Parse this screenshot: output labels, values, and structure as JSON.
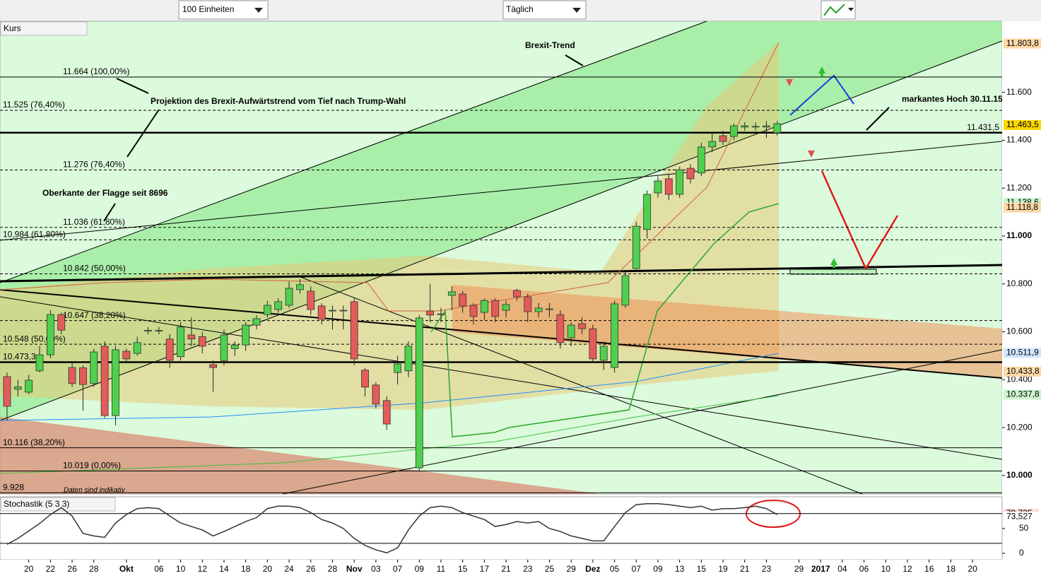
{
  "toolbar": {
    "units": "100 Einheiten",
    "interval": "Täglich"
  },
  "chart_data": {
    "type": "candlestick",
    "title": "Kurs",
    "annotations": [
      "Brexit-Trend",
      "Projektion des  Brexit-Aufwärtstrend vom Tief nach Trump-Wahl",
      "markantes Hoch 30.11.15",
      "Oberkante der Flagge seit 8696",
      "Daten sind indikativ"
    ],
    "up_color": "#4fd04f",
    "down_color": "#e35b5b",
    "open": [
      10413,
      10360,
      10348,
      10437,
      10504,
      10672,
      10451,
      10450,
      10384,
      10540,
      10250,
      10519,
      10510,
      10603,
      10603,
      10570,
      10496,
      10587,
      10580,
      10463,
      10480,
      10530,
      10545,
      10628,
      10672,
      10693,
      10711,
      10776,
      10770,
      10708,
      10688,
      10688,
      10726,
      10440,
      10378,
      10313,
      10430,
      10437,
      10032,
      10687,
      10672,
      10752,
      10758,
      10711,
      10681,
      10731,
      10690,
      10773,
      10746,
      10684,
      10693,
      10672,
      10575,
      10634,
      10613,
      10481,
      10451,
      10711,
      10864,
      11027,
      11180,
      11239,
      11174,
      11283,
      11263,
      11372,
      11419,
      11416,
      11455,
      11455,
      11455,
      11431
    ],
    "high": [
      10430,
      10400,
      10420,
      10540,
      10690,
      10680,
      10470,
      10460,
      10530,
      10560,
      10540,
      10530,
      10580,
      10620,
      10620,
      10590,
      10640,
      10660,
      10600,
      10480,
      10610,
      10560,
      10640,
      10670,
      10730,
      10740,
      10810,
      10820,
      10790,
      10720,
      10710,
      10710,
      10740,
      10450,
      10390,
      10330,
      10500,
      10560,
      10670,
      10800,
      10700,
      10790,
      10770,
      10720,
      10740,
      10740,
      10730,
      10780,
      10760,
      10720,
      10720,
      10690,
      10640,
      10660,
      10630,
      10560,
      10730,
      10850,
      11060,
      11190,
      11250,
      11260,
      11290,
      11300,
      11390,
      11430,
      11440,
      11470,
      11475,
      11475,
      11480,
      11480
    ],
    "low": [
      10230,
      10330,
      10340,
      10430,
      10490,
      10590,
      10370,
      10270,
      10370,
      10240,
      10210,
      10470,
      10500,
      10590,
      10590,
      10450,
      10480,
      10540,
      10510,
      10350,
      10460,
      10500,
      10520,
      10610,
      10660,
      10680,
      10700,
      10760,
      10670,
      10630,
      10610,
      10610,
      10460,
      10330,
      10280,
      10190,
      10380,
      10410,
      10020,
      10640,
      10640,
      10690,
      10680,
      10630,
      10650,
      10640,
      10660,
      10730,
      10640,
      10660,
      10660,
      10530,
      10540,
      10590,
      10470,
      10440,
      10430,
      10700,
      10850,
      10990,
      11160,
      11150,
      11160,
      11220,
      11250,
      11350,
      11380,
      11400,
      11440,
      11440,
      11410,
      11420
    ],
    "close": [
      10289,
      10370,
      10398,
      10504,
      10672,
      10607,
      10384,
      10380,
      10516,
      10250,
      10525,
      10487,
      10555,
      10606,
      10606,
      10481,
      10620,
      10570,
      10540,
      10451,
      10587,
      10545,
      10628,
      10655,
      10711,
      10726,
      10782,
      10797,
      10693,
      10652,
      10690,
      10690,
      10487,
      10369,
      10298,
      10215,
      10466,
      10540,
      10658,
      10670,
      10675,
      10767,
      10708,
      10664,
      10731,
      10664,
      10714,
      10746,
      10684,
      10699,
      10696,
      10555,
      10628,
      10613,
      10487,
      10540,
      10717,
      10835,
      11041,
      11174,
      11230,
      11174,
      11277,
      11239,
      11372,
      11395,
      11395,
      11460,
      11460,
      11458,
      11460,
      11469
    ],
    "xlim": [
      -0.65,
      91.73
    ],
    "xticks": [
      {
        "value": 2,
        "label": "20"
      },
      {
        "value": 4,
        "label": "22"
      },
      {
        "value": 6,
        "label": "26"
      },
      {
        "value": 8,
        "label": "28"
      },
      {
        "value": 11,
        "label": "Okt"
      },
      {
        "value": 14,
        "label": "06"
      },
      {
        "value": 16,
        "label": "10"
      },
      {
        "value": 18,
        "label": "12"
      },
      {
        "value": 20,
        "label": "14"
      },
      {
        "value": 22,
        "label": "18"
      },
      {
        "value": 24,
        "label": "20"
      },
      {
        "value": 26,
        "label": "24"
      },
      {
        "value": 28,
        "label": "26"
      },
      {
        "value": 30,
        "label": "28"
      },
      {
        "value": 32,
        "label": "Nov"
      },
      {
        "value": 34,
        "label": "03"
      },
      {
        "value": 36,
        "label": "07"
      },
      {
        "value": 38,
        "label": "09"
      },
      {
        "value": 40,
        "label": "11"
      },
      {
        "value": 42,
        "label": "15"
      },
      {
        "value": 44,
        "label": "17"
      },
      {
        "value": 46,
        "label": "21"
      },
      {
        "value": 48,
        "label": "23"
      },
      {
        "value": 50,
        "label": "25"
      },
      {
        "value": 52,
        "label": "29"
      },
      {
        "value": 54,
        "label": "Dez"
      },
      {
        "value": 56,
        "label": "05"
      },
      {
        "value": 58,
        "label": "07"
      },
      {
        "value": 60,
        "label": "09"
      },
      {
        "value": 62,
        "label": "13"
      },
      {
        "value": 64,
        "label": "15"
      },
      {
        "value": 66,
        "label": "19"
      },
      {
        "value": 68,
        "label": "21"
      },
      {
        "value": 70,
        "label": "23"
      },
      {
        "value": 73,
        "label": "29"
      },
      {
        "value": 75,
        "label": "2017"
      },
      {
        "value": 77,
        "label": "04"
      },
      {
        "value": 79,
        "label": "06"
      },
      {
        "value": 81,
        "label": "10"
      },
      {
        "value": 83,
        "label": "12"
      },
      {
        "value": 85,
        "label": "16"
      },
      {
        "value": 87,
        "label": "18"
      },
      {
        "value": 89,
        "label": "20"
      }
    ],
    "ylim": [
      9923,
      11897
    ],
    "yticks": [
      {
        "value": 10000,
        "label": "10.000"
      },
      {
        "value": 10200,
        "label": "10.200"
      },
      {
        "value": 10400,
        "label": "10.400"
      },
      {
        "value": 10600,
        "label": "10.600"
      },
      {
        "value": 10800,
        "label": "10.800"
      },
      {
        "value": 11000,
        "label": "11.000"
      },
      {
        "value": 11200,
        "label": "11.200"
      },
      {
        "value": 11400,
        "label": "11.400"
      },
      {
        "value": 11600,
        "label": "11.600"
      }
    ],
    "levels": [
      {
        "value": 11664,
        "label": "11.664 (100,00%)",
        "style": "solid"
      },
      {
        "value": 11525,
        "label": "11.525 (76,40%)",
        "style": "dashed"
      },
      {
        "value": 11431.5,
        "label": "11.431,5",
        "style": "thick"
      },
      {
        "value": 11276,
        "label": "11.276 (76,40%)",
        "style": "dashed"
      },
      {
        "value": 11036,
        "label": "11.036 (61,80%)",
        "style": "dashed"
      },
      {
        "value": 10984,
        "label": "10,984 (61,80%)",
        "style": "dashed"
      },
      {
        "value": 10842,
        "label": "10.842 (50,00%)",
        "style": "dashed"
      },
      {
        "value": 10647,
        "label": "10.647 (38,20%)",
        "style": "dashed"
      },
      {
        "value": 10548,
        "label": "10.548 (50,00%)",
        "style": "dashed"
      },
      {
        "value": 10473.3,
        "label": "10.473,3",
        "style": "thick"
      },
      {
        "value": 10116,
        "label": "10.116 (38,20%)",
        "style": "solid"
      },
      {
        "value": 10019,
        "label": "10.019 (0,00%)",
        "style": "solid"
      },
      {
        "value": 9928,
        "label": "9.928",
        "style": "solid"
      }
    ],
    "price_markers": [
      {
        "value": 11803.8,
        "label": "11.803,8",
        "color": "#ffd8a8"
      },
      {
        "value": 11463.5,
        "label": "11.463,5",
        "color": "#ffd700"
      },
      {
        "value": 11138.6,
        "label": "11.138,6",
        "color": "#ccf5cc"
      },
      {
        "value": 11118.8,
        "label": "11.118,8",
        "color": "#ffd8a8"
      },
      {
        "value": 10511.9,
        "label": "10.511,9",
        "color": "#cfe6ff"
      },
      {
        "value": 10433.8,
        "label": "10.433,8",
        "color": "#ffd8a8"
      },
      {
        "value": 10337.8,
        "label": "10.337,8",
        "color": "#ccf5cc"
      }
    ],
    "stochastic": {
      "title": "Stochastik (5 3 3)",
      "color": "#333333",
      "values": [
        18,
        30,
        45,
        60,
        78,
        92,
        75,
        40,
        35,
        32,
        61,
        78,
        90,
        92,
        90,
        75,
        61,
        54,
        47,
        35,
        44,
        54,
        64,
        72,
        90,
        95,
        95,
        92,
        82,
        68,
        61,
        50,
        30,
        16,
        7,
        1,
        11,
        47,
        75,
        92,
        95,
        92,
        82,
        75,
        68,
        54,
        58,
        64,
        61,
        64,
        50,
        44,
        35,
        30,
        25,
        25,
        54,
        82,
        98,
        100,
        100,
        98,
        95,
        92,
        95,
        87,
        90,
        90,
        92,
        95,
        90,
        78
      ],
      "ylim": [
        -10,
        111
      ],
      "yticks": [
        0,
        50
      ],
      "levels": [
        20,
        80
      ],
      "markers": [
        {
          "value": 79.735,
          "label": "79,735",
          "color": "#ffd8d8"
        },
        {
          "value": 73.527,
          "label": "73,527",
          "color": "#ffffff"
        }
      ]
    }
  }
}
